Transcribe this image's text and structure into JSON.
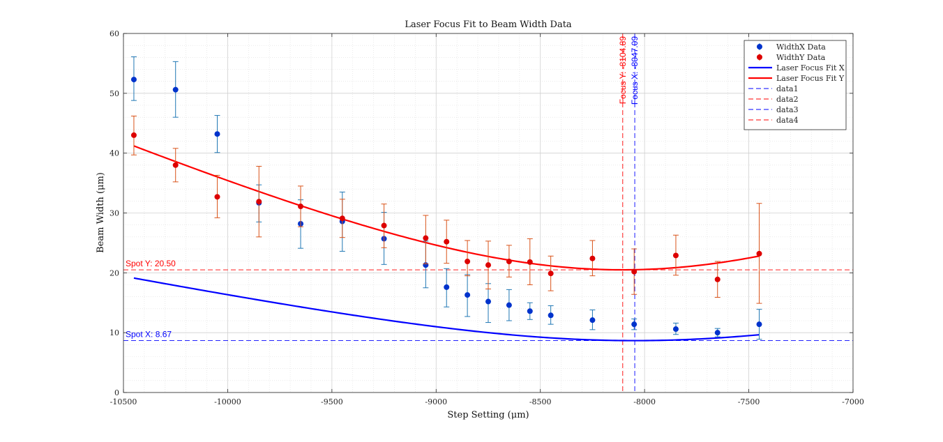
{
  "chart_data": {
    "type": "scatter",
    "title": "Laser Focus Fit to Beam Width Data",
    "xlabel": "Step Setting (μm)",
    "ylabel": "Beam Width (μm)",
    "xlim": [
      -10500,
      -7000
    ],
    "ylim": [
      0,
      60
    ],
    "xticks": [
      -10500,
      -10000,
      -9500,
      -9000,
      -8500,
      -8000,
      -7500,
      -7000
    ],
    "yticks": [
      0,
      10,
      20,
      30,
      40,
      50,
      60
    ],
    "grid": true,
    "minor_grid": true,
    "legend_position": "top-right",
    "series": [
      {
        "name": "WidthX Data",
        "kind": "errorbar",
        "color": "#0033cc",
        "errcolor": "#1f77b4",
        "x": [
          -10450,
          -10250,
          -10050,
          -9850,
          -9650,
          -9450,
          -9250,
          -9050,
          -8950,
          -8850,
          -8750,
          -8650,
          -8550,
          -8450,
          -8250,
          -8050,
          -7850,
          -7650,
          -7450
        ],
        "y": [
          52.3,
          50.6,
          43.2,
          31.7,
          28.2,
          28.6,
          25.7,
          21.3,
          17.6,
          16.3,
          15.2,
          14.6,
          13.6,
          12.9,
          12.1,
          11.4,
          10.6,
          10.0,
          11.4
        ],
        "err_lo": [
          3.5,
          4.6,
          3.1,
          3.2,
          4.1,
          5.0,
          4.3,
          3.8,
          3.3,
          3.6,
          3.5,
          2.6,
          1.4,
          1.5,
          1.6,
          0.9,
          0.9,
          0.7,
          2.5
        ],
        "err_hi": [
          3.8,
          4.7,
          3.1,
          3.0,
          4.0,
          4.9,
          4.4,
          4.0,
          3.1,
          3.4,
          3.0,
          2.6,
          1.4,
          1.6,
          1.7,
          0.9,
          1.0,
          0.7,
          2.5
        ]
      },
      {
        "name": "WidthY Data",
        "kind": "errorbar",
        "color": "#dd0000",
        "errcolor": "#d95319",
        "x": [
          -10450,
          -10250,
          -10050,
          -9850,
          -9650,
          -9450,
          -9250,
          -9050,
          -8950,
          -8850,
          -8750,
          -8650,
          -8550,
          -8450,
          -8250,
          -8050,
          -7850,
          -7650,
          -7450
        ],
        "y": [
          43.0,
          38.0,
          32.7,
          31.9,
          31.1,
          29.1,
          27.9,
          25.8,
          25.2,
          21.9,
          21.3,
          21.9,
          21.8,
          19.9,
          22.4,
          20.2,
          22.9,
          18.9,
          23.2
        ],
        "err_lo": [
          3.3,
          2.8,
          3.5,
          5.9,
          3.4,
          3.2,
          3.7,
          4.3,
          3.6,
          2.4,
          4.0,
          2.6,
          3.8,
          2.9,
          2.9,
          3.8,
          3.3,
          3.0,
          8.3
        ],
        "err_hi": [
          3.2,
          2.8,
          3.6,
          5.9,
          3.4,
          3.2,
          3.6,
          3.8,
          3.6,
          3.5,
          4.0,
          2.7,
          3.9,
          2.9,
          3.0,
          3.8,
          3.4,
          3.0,
          8.4
        ]
      },
      {
        "name": "Laser Focus Fit X",
        "kind": "fit",
        "color": "#0000ff",
        "x0": -8047.09,
        "w0": 8.67,
        "zR": 1222,
        "xrange": [
          -10450,
          -7450
        ]
      },
      {
        "name": "Laser Focus Fit Y",
        "kind": "fit",
        "color": "#ff0000",
        "x0": -8104.89,
        "w0": 20.5,
        "zR": 1345,
        "xrange": [
          -10450,
          -7450
        ]
      },
      {
        "name": "data1",
        "kind": "vline",
        "x": -8047.09,
        "color": "#0000ff"
      },
      {
        "name": "data2",
        "kind": "vline",
        "x": -8104.89,
        "color": "#ff0000"
      },
      {
        "name": "data3",
        "kind": "hline",
        "y": 8.67,
        "color": "#0000ff"
      },
      {
        "name": "data4",
        "kind": "hline",
        "y": 20.5,
        "color": "#ff0000"
      }
    ],
    "annotations": [
      {
        "text": "Focus Y: -8104.89",
        "x": -8104.89,
        "color": "#ff0000",
        "orientation": "vertical"
      },
      {
        "text": "Focus X: -8047.09",
        "x": -8047.09,
        "color": "#0000ff",
        "orientation": "vertical"
      },
      {
        "text": "Spot Y: 20.50",
        "y": 20.5,
        "color": "#ff0000",
        "orientation": "horizontal"
      },
      {
        "text": "Spot X: 8.67",
        "y": 8.67,
        "color": "#0000ff",
        "orientation": "horizontal"
      }
    ]
  }
}
